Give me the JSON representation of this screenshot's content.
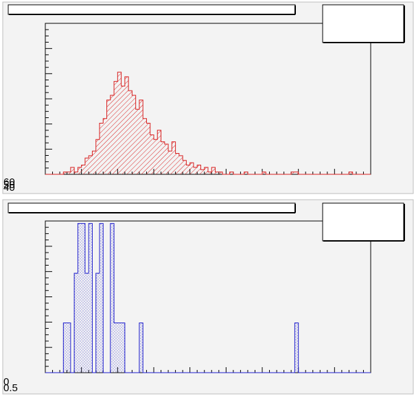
{
  "pads": [
    {
      "title_box": "",
      "stats_box": "",
      "tick_labels": [
        "60",
        "50",
        "40"
      ],
      "chart_data": {
        "type": "histogram",
        "color": "#d81f1f",
        "fill_pattern": "diagonal-hatch",
        "x_range": [
          0,
          90
        ],
        "ylim": [
          0,
          65
        ],
        "grid": false,
        "values": [
          0,
          0,
          0,
          0,
          0,
          1,
          1,
          3,
          1,
          3,
          4,
          7,
          8,
          10,
          15,
          22,
          24,
          32,
          34,
          40,
          44,
          38,
          42,
          36,
          34,
          28,
          32,
          24,
          22,
          17,
          15,
          19,
          14,
          13,
          10,
          14,
          9,
          8,
          6,
          4,
          5,
          3,
          4,
          2,
          3,
          1,
          3,
          1,
          1,
          0,
          0,
          1,
          0,
          0,
          0,
          1,
          0,
          0,
          0,
          0,
          1,
          0,
          0,
          0,
          0,
          0,
          0,
          0,
          1,
          1,
          0,
          0,
          0,
          0,
          0,
          0,
          0,
          0,
          0,
          0,
          0,
          0,
          0,
          0,
          1,
          0,
          0,
          0,
          0,
          0
        ]
      }
    },
    {
      "title_box": "",
      "stats_box": "",
      "tick_labels": [
        "0",
        "0.5"
      ],
      "chart_data": {
        "type": "histogram",
        "color": "#1c1ccc",
        "fill_pattern": "dot-hatch",
        "x_range": [
          0,
          90
        ],
        "ylim": [
          0,
          3.05
        ],
        "grid": false,
        "values": [
          0,
          0,
          0,
          0,
          0,
          1,
          1,
          0,
          2,
          3,
          3,
          2,
          3,
          0,
          2,
          3,
          0,
          0,
          3,
          1,
          1,
          1,
          0,
          0,
          0,
          0,
          1,
          0,
          0,
          0,
          0,
          0,
          0,
          0,
          0,
          0,
          0,
          0,
          0,
          0,
          0,
          0,
          0,
          0,
          0,
          0,
          0,
          0,
          0,
          0,
          0,
          0,
          0,
          0,
          0,
          0,
          0,
          0,
          0,
          0,
          0,
          0,
          0,
          0,
          0,
          0,
          0,
          0,
          0,
          1,
          0,
          0,
          0,
          0,
          0,
          0,
          0,
          0,
          0,
          0,
          0,
          0,
          0,
          0,
          0,
          0,
          0,
          0,
          0,
          0
        ]
      }
    }
  ]
}
